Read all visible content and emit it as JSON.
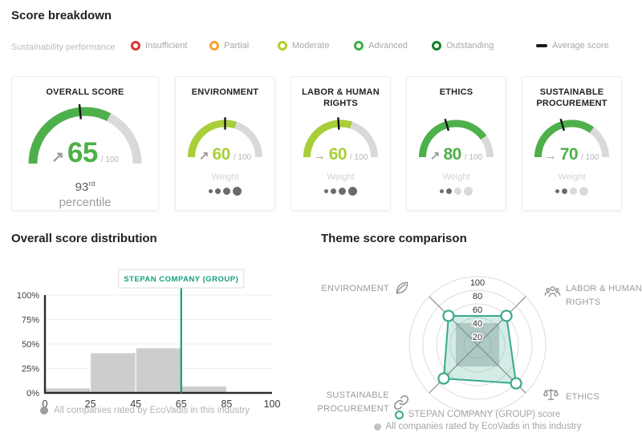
{
  "header": {
    "title": "Score breakdown"
  },
  "legend": {
    "label": "Sustainability performance",
    "items": [
      {
        "label": "Insufficient",
        "color": "#d63a2f"
      },
      {
        "label": "Partial",
        "color": "#f0a236"
      },
      {
        "label": "Moderate",
        "color": "#b4cd32"
      },
      {
        "label": "Advanced",
        "color": "#3fae49"
      },
      {
        "label": "Outstanding",
        "color": "#17802b"
      }
    ],
    "average": {
      "label": "Average score",
      "color": "#1c1c1c"
    }
  },
  "cards": {
    "unit": "/ 100",
    "weight_label": "Weight",
    "items": [
      {
        "title": "OVERALL SCORE",
        "value": 65,
        "arrow": "↗",
        "color": "#4db04a",
        "average": 47,
        "percentile_value": "93",
        "percentile_suffix": "rd",
        "percentile_label": "percentile"
      },
      {
        "title": "ENVIRONMENT",
        "value": 60,
        "arrow": "↗",
        "color": "#a8ce38",
        "average": 50,
        "weight": [
          1,
          1,
          1,
          1
        ]
      },
      {
        "title": "LABOR & HUMAN RIGHTS",
        "value": 60,
        "arrow": "→",
        "color": "#a8ce38",
        "average": 48,
        "weight": [
          1,
          1,
          1,
          1
        ]
      },
      {
        "title": "ETHICS",
        "value": 80,
        "arrow": "↗",
        "color": "#4db04a",
        "average": 41,
        "weight": [
          1,
          1,
          0,
          0
        ]
      },
      {
        "title": "SUSTAINABLE PROCUREMENT",
        "value": 70,
        "arrow": "→",
        "color": "#4db04a",
        "average": 41,
        "weight": [
          1,
          1,
          0,
          0
        ]
      }
    ]
  },
  "chart_data": [
    {
      "type": "bar",
      "title": "Overall score distribution",
      "x_tick_labels": [
        "0",
        "25",
        "45",
        "65",
        "85",
        "100"
      ],
      "bins": [
        [
          0,
          25
        ],
        [
          25,
          45
        ],
        [
          45,
          65
        ],
        [
          65,
          85
        ],
        [
          85,
          100
        ]
      ],
      "values_percent": [
        5,
        41,
        46,
        7,
        0
      ],
      "y_tick_labels": [
        "0%",
        "25%",
        "50%",
        "75%",
        "100%"
      ],
      "y_tick_values": [
        0,
        25,
        50,
        75,
        100
      ],
      "ylim": [
        0,
        100
      ],
      "grid": true,
      "bar_color": "#cdcdcd",
      "marker": {
        "label": "STEPAN COMPANY (GROUP)",
        "x": "65",
        "color": "#149e7c"
      },
      "legend_label": "All companies rated by EcoVadis in this industry"
    },
    {
      "type": "radar",
      "title": "Theme score comparison",
      "ring_ticks": [
        20,
        40,
        60,
        80,
        100
      ],
      "axes": [
        {
          "label": "ENVIRONMENT",
          "icon": "leaf-icon",
          "angle_deg": 135
        },
        {
          "label": "LABOR & HUMAN RIGHTS",
          "icon": "people-icon",
          "angle_deg": 45
        },
        {
          "label": "ETHICS",
          "icon": "scales-icon",
          "angle_deg": -45
        },
        {
          "label": "SUSTAINABLE PROCUREMENT",
          "icon": "link-icon",
          "angle_deg": -135
        }
      ],
      "series": [
        {
          "name": "All companies rated by EcoVadis in this industry",
          "values": [
            45,
            45,
            45,
            45
          ],
          "color": "#82878a",
          "fill_opacity": 0.38,
          "marker": "none"
        },
        {
          "name": "STEPAN COMPANY (GROUP) score",
          "values": [
            60,
            60,
            80,
            70
          ],
          "color": "#39a98c",
          "fill_opacity": 0.22,
          "marker": "ring"
        }
      ],
      "legend": [
        {
          "label": "STEPAN COMPANY (GROUP) score",
          "marker": "teal-ring"
        },
        {
          "label": "All companies rated by EcoVadis in this industry",
          "marker": "gray-dot"
        }
      ]
    }
  ]
}
